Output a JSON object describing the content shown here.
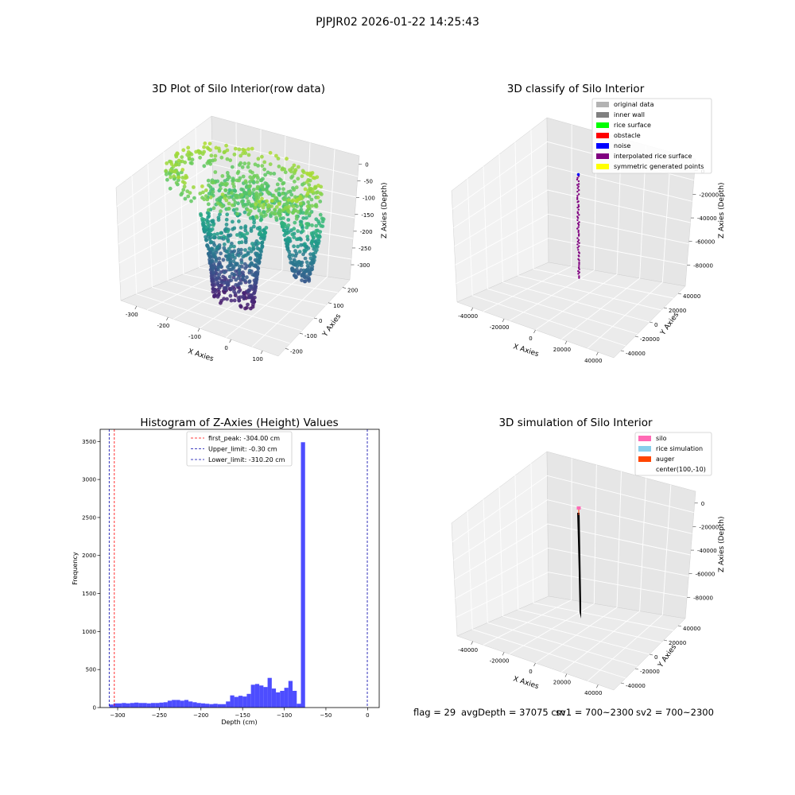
{
  "figure_title": "PJPJR02 2026-01-22 14:25:43",
  "colors": {
    "pane": "#f2f2f2",
    "pane_side": "#e6e6e6",
    "pane_floor": "#ebebeb",
    "grid": "#ffffff",
    "hist_bar": "#4d4dff",
    "peak_line": "#ff0000",
    "limit_line": "#0000aa"
  },
  "chart_data": [
    {
      "type": "scatter3d",
      "title": "3D Plot of Silo Interior(row data)",
      "xlabel": "X Axies",
      "ylabel": "Y Axies",
      "zlabel": "Z Axies (Depth)",
      "x_ticks": [
        "-300",
        "-200",
        "-100",
        "0",
        "100"
      ],
      "y_ticks": [
        "-200",
        "-100",
        "0",
        "100",
        "200"
      ],
      "z_ticks": [
        "0",
        "-50",
        "-100",
        "-150",
        "-200",
        "-250",
        "-300"
      ],
      "xlim": [
        -340,
        140
      ],
      "ylim": [
        -240,
        260
      ],
      "zlim": [
        -320,
        10
      ],
      "colormap": "viridis",
      "structure": {
        "ring": {
          "center": [
            -120,
            30
          ],
          "radius": 200,
          "z": -30
        },
        "surface": {
          "center": [
            -100,
            60
          ],
          "radius": 130,
          "z": -60
        },
        "cone": {
          "center": [
            -110,
            -40
          ],
          "z_top": -120,
          "z_bottom": -300
        },
        "lobe": {
          "center": [
            40,
            60
          ],
          "z_top": -90,
          "z_bottom": -230
        }
      }
    },
    {
      "type": "scatter3d",
      "title": "3D classify of Silo Interior",
      "xlabel": "X Axies",
      "ylabel": "Y Axies",
      "zlabel": "Z Axies (Depth)",
      "x_ticks": [
        "-40000",
        "-20000",
        "0",
        "20000",
        "40000"
      ],
      "y_ticks": [
        "-40000",
        "-20000",
        "0",
        "20000",
        "40000"
      ],
      "z_ticks": [
        "0",
        "-20000",
        "-40000",
        "-60000",
        "-80000"
      ],
      "legend": [
        {
          "label": "original data",
          "color": "#b3b3b3"
        },
        {
          "label": "inner wall",
          "color": "#808080"
        },
        {
          "label": "rice surface",
          "color": "#00ff00"
        },
        {
          "label": "obstacle",
          "color": "#ff0000"
        },
        {
          "label": "noise",
          "color": "#0000ff"
        },
        {
          "label": "interpolated rice surface",
          "color": "#800080"
        },
        {
          "label": "symmetric generated points",
          "color": "#ffff00"
        }
      ],
      "legend_loc": "upper right",
      "points_x": [
        0
      ],
      "points_y": [
        0
      ],
      "z_range": [
        -2000,
        -90000
      ]
    },
    {
      "type": "bar",
      "title": "Histogram of Z-Axies (Height) Values",
      "xlabel": "Depth (cm)",
      "ylabel": "Frequency",
      "x_ticks": [
        "−300",
        "−250",
        "−200",
        "−150",
        "−100",
        "−50",
        "0"
      ],
      "y_ticks": [
        "0",
        "500",
        "1000",
        "1500",
        "2000",
        "2500",
        "3000",
        "3500"
      ],
      "xlim": [
        -321,
        14
      ],
      "ylim": [
        0,
        3660
      ],
      "bin_width": 5,
      "bin_start": -310,
      "values": [
        40,
        55,
        55,
        60,
        55,
        60,
        65,
        60,
        60,
        55,
        60,
        60,
        65,
        70,
        90,
        100,
        100,
        90,
        100,
        80,
        70,
        60,
        55,
        50,
        45,
        50,
        45,
        45,
        80,
        160,
        140,
        155,
        145,
        180,
        300,
        310,
        290,
        270,
        390,
        250,
        200,
        220,
        260,
        350,
        220,
        50,
        3490
      ],
      "legend": [
        {
          "label": "first_peak: -304.00 cm",
          "color": "#ff0000"
        },
        {
          "label": "Upper_limit: -0.30 cm",
          "color": "#0000aa"
        },
        {
          "label": "Lower_limit: -310.20 cm",
          "color": "#0000aa"
        }
      ],
      "vlines": [
        {
          "x": -304.0,
          "color": "#ff0000"
        },
        {
          "x": -0.3,
          "color": "#0000aa"
        },
        {
          "x": -310.2,
          "color": "#0000aa"
        }
      ],
      "legend_loc": "upper center",
      "grid": false
    },
    {
      "type": "surface3d",
      "title": "3D simulation of Silo Interior",
      "xlabel": "X Axies",
      "ylabel": "Y Axies",
      "zlabel": "Z Axies (Depth)",
      "x_ticks": [
        "-40000",
        "-20000",
        "0",
        "20000",
        "40000"
      ],
      "y_ticks": [
        "-40000",
        "-20000",
        "0",
        "20000",
        "40000"
      ],
      "z_ticks": [
        "0",
        "-20000",
        "-40000",
        "-60000",
        "-80000"
      ],
      "legend": [
        {
          "label": "silo",
          "color": "#ff69b4"
        },
        {
          "label": "rice simulation",
          "color": "#87ceeb"
        },
        {
          "label": "auger",
          "color": "#ff4500"
        },
        {
          "label": "center(100,-10)",
          "color": ""
        }
      ],
      "legend_loc": "upper right",
      "z_range": [
        -1000,
        -95000
      ]
    }
  ],
  "footer": {
    "flag": "flag = 29",
    "avg_depth": "avgDepth = 37075 cm",
    "sv1": "sv1 = 700~2300",
    "sv2": "sv2 = 700~2300"
  }
}
